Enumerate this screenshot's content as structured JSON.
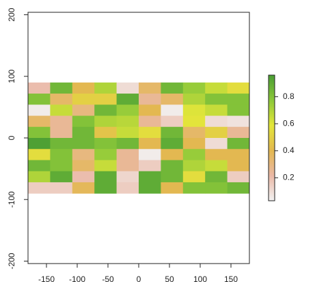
{
  "chart_data": {
    "type": "heatmap",
    "x_edges": [
      -180,
      -144,
      -108,
      -72,
      -36,
      0,
      36,
      72,
      108,
      144,
      180
    ],
    "y_edges": [
      90,
      72,
      54,
      36,
      18,
      0,
      -18,
      -36,
      -54,
      -72,
      -90
    ],
    "values": [
      [
        0.2,
        0.85,
        0.4,
        0.7,
        0.1,
        0.35,
        0.85,
        0.75,
        0.65,
        0.55
      ],
      [
        0.8,
        0.35,
        0.5,
        0.5,
        0.9,
        0.25,
        0.35,
        0.7,
        0.8,
        0.8
      ],
      [
        0.05,
        0.65,
        0.3,
        0.85,
        0.75,
        0.4,
        0.05,
        0.6,
        0.65,
        0.8
      ],
      [
        0.35,
        0.25,
        0.8,
        0.7,
        0.68,
        0.25,
        0.15,
        0.58,
        0.1,
        0.08
      ],
      [
        0.8,
        0.25,
        0.85,
        0.45,
        0.65,
        0.55,
        0.85,
        0.35,
        0.5,
        0.25
      ],
      [
        0.95,
        0.85,
        0.85,
        0.8,
        0.85,
        0.4,
        0.9,
        0.4,
        0.1,
        0.85
      ],
      [
        0.55,
        0.8,
        0.3,
        0.75,
        0.25,
        0.05,
        0.4,
        0.75,
        0.4,
        0.4
      ],
      [
        0.85,
        0.8,
        0.35,
        0.65,
        0.25,
        0.15,
        0.85,
        0.7,
        0.65,
        0.4
      ],
      [
        0.7,
        0.9,
        0.2,
        0.9,
        0.12,
        0.9,
        0.85,
        0.55,
        0.85,
        0.15
      ],
      [
        0.15,
        0.15,
        0.38,
        0.9,
        0.15,
        0.9,
        0.4,
        0.8,
        0.8,
        0.85
      ]
    ],
    "colorscale": [
      "#f2f2f2",
      "#eab8a6",
      "#e3b850",
      "#e3e63a",
      "#8cc83a",
      "#4a9e34"
    ],
    "zlim": [
      0.03,
      0.96
    ],
    "colorbar_ticks": [
      0.2,
      0.4,
      0.6,
      0.8
    ],
    "xlim": [
      -180,
      180
    ],
    "ylim": [
      -204,
      204
    ],
    "xticks": [
      -150,
      -100,
      -50,
      0,
      50,
      100,
      150
    ],
    "yticks": [
      -200,
      -100,
      0,
      100,
      200
    ]
  }
}
